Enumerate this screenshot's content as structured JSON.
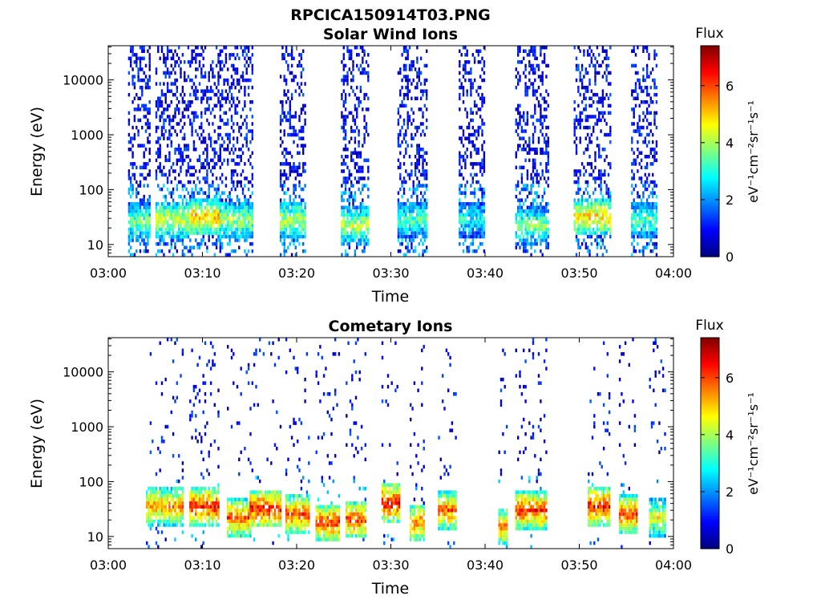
{
  "figure_title": "RPCICA150914T03.PNG",
  "colorbar": {
    "title": "Flux",
    "label": "eV⁻¹cm⁻²sr⁻¹s⁻¹",
    "ticks": [
      "0",
      "2",
      "4",
      "6"
    ],
    "range": [
      0,
      7.4
    ],
    "colormap": "jet"
  },
  "chart_data": [
    {
      "type": "heatmap",
      "title": "Solar Wind Ions",
      "xlabel": "Time",
      "ylabel": "Energy (eV)",
      "x_range": [
        "03:00",
        "04:00"
      ],
      "x_ticks": [
        "03:00",
        "03:10",
        "03:20",
        "03:30",
        "03:40",
        "03:50",
        "04:00"
      ],
      "y_scale": "log",
      "y_range": [
        6,
        42000
      ],
      "y_ticks": [
        "10",
        "100",
        "1000",
        "10000"
      ],
      "z_range": [
        0,
        7.4
      ],
      "bursts": [
        {
          "start_min": 2.1,
          "end_min": 4.4,
          "peak_flux": 4.5,
          "peak_energy_ev": 25
        },
        {
          "start_min": 5.0,
          "end_min": 8.6,
          "peak_flux": 5.2,
          "peak_energy_ev": 28
        },
        {
          "start_min": 8.6,
          "end_min": 11.8,
          "peak_flux": 6.0,
          "peak_energy_ev": 32
        },
        {
          "start_min": 11.8,
          "end_min": 15.2,
          "peak_flux": 4.8,
          "peak_energy_ev": 28
        },
        {
          "start_min": 18.2,
          "end_min": 20.8,
          "peak_flux": 5.0,
          "peak_energy_ev": 28
        },
        {
          "start_min": 24.7,
          "end_min": 27.6,
          "peak_flux": 5.0,
          "peak_energy_ev": 22
        },
        {
          "start_min": 30.7,
          "end_min": 33.9,
          "peak_flux": 4.2,
          "peak_energy_ev": 28
        },
        {
          "start_min": 37.2,
          "end_min": 39.9,
          "peak_flux": 3.8,
          "peak_energy_ev": 28
        },
        {
          "start_min": 43.2,
          "end_min": 46.7,
          "peak_flux": 4.5,
          "peak_energy_ev": 22
        },
        {
          "start_min": 49.4,
          "end_min": 53.4,
          "peak_flux": 5.8,
          "peak_energy_ev": 32
        },
        {
          "start_min": 55.5,
          "end_min": 58.3,
          "peak_flux": 4.3,
          "peak_energy_ev": 28
        }
      ]
    },
    {
      "type": "heatmap",
      "title": "Cometary Ions",
      "xlabel": "Time",
      "ylabel": "Energy (eV)",
      "x_range": [
        "03:00",
        "04:00"
      ],
      "x_ticks": [
        "03:00",
        "03:10",
        "03:20",
        "03:30",
        "03:40",
        "03:50",
        "04:00"
      ],
      "y_scale": "log",
      "y_range": [
        6,
        42000
      ],
      "y_ticks": [
        "10",
        "100",
        "1000",
        "10000"
      ],
      "z_range": [
        0,
        7.4
      ],
      "bursts": [
        {
          "start_min": 4.0,
          "end_min": 8.0,
          "peak_flux": 6.3,
          "peak_energy_ev": 35
        },
        {
          "start_min": 8.6,
          "end_min": 11.6,
          "peak_flux": 7.2,
          "peak_energy_ev": 35
        },
        {
          "start_min": 12.6,
          "end_min": 15.0,
          "peak_flux": 6.8,
          "peak_energy_ev": 22
        },
        {
          "start_min": 15.0,
          "end_min": 18.2,
          "peak_flux": 7.2,
          "peak_energy_ev": 32
        },
        {
          "start_min": 18.8,
          "end_min": 21.2,
          "peak_flux": 6.9,
          "peak_energy_ev": 25
        },
        {
          "start_min": 22.0,
          "end_min": 24.5,
          "peak_flux": 7.0,
          "peak_energy_ev": 18
        },
        {
          "start_min": 25.2,
          "end_min": 27.2,
          "peak_flux": 6.8,
          "peak_energy_ev": 20
        },
        {
          "start_min": 29.0,
          "end_min": 30.9,
          "peak_flux": 7.3,
          "peak_energy_ev": 40
        },
        {
          "start_min": 32.0,
          "end_min": 33.6,
          "peak_flux": 6.5,
          "peak_energy_ev": 18
        },
        {
          "start_min": 35.0,
          "end_min": 36.9,
          "peak_flux": 6.7,
          "peak_energy_ev": 30
        },
        {
          "start_min": 41.4,
          "end_min": 42.4,
          "peak_flux": 6.4,
          "peak_energy_ev": 15
        },
        {
          "start_min": 43.2,
          "end_min": 46.5,
          "peak_flux": 7.0,
          "peak_energy_ev": 30
        },
        {
          "start_min": 50.9,
          "end_min": 53.2,
          "peak_flux": 7.2,
          "peak_energy_ev": 35
        },
        {
          "start_min": 54.2,
          "end_min": 56.2,
          "peak_flux": 6.9,
          "peak_energy_ev": 25
        },
        {
          "start_min": 57.4,
          "end_min": 59.2,
          "peak_flux": 5.4,
          "peak_energy_ev": 22
        }
      ]
    }
  ]
}
